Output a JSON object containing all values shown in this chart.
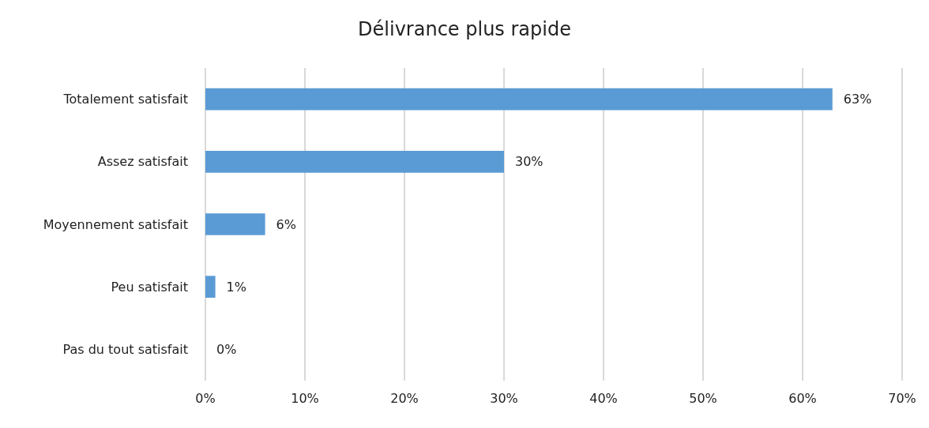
{
  "chart_data": {
    "type": "bar",
    "orientation": "horizontal",
    "title": "Délivrance plus rapide",
    "categories": [
      "Totalement satisfait",
      "Assez satisfait",
      "Moyennement satisfait",
      "Peu satisfait",
      "Pas du tout satisfait"
    ],
    "values": [
      63,
      30,
      6,
      1,
      0
    ],
    "value_labels": [
      "63%",
      "30%",
      "6%",
      "1%",
      "0%"
    ],
    "color": "#5b9bd5",
    "xlim": [
      0,
      70
    ],
    "xticks": [
      {
        "value": 0,
        "label": "0%"
      },
      {
        "value": 10,
        "label": "10%"
      },
      {
        "value": 20,
        "label": "20%"
      },
      {
        "value": 30,
        "label": "30%"
      },
      {
        "value": 40,
        "label": "40%"
      },
      {
        "value": 50,
        "label": "50%"
      },
      {
        "value": 60,
        "label": "60%"
      },
      {
        "value": 70,
        "label": "70%"
      }
    ],
    "grid": "x"
  }
}
